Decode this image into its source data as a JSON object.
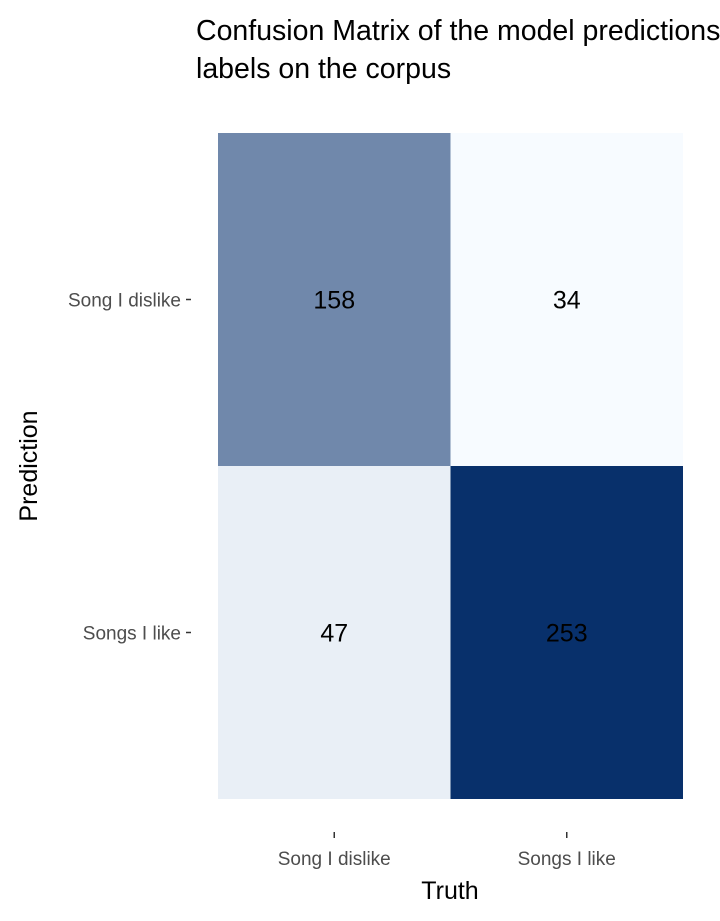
{
  "chart_data": {
    "type": "heatmap",
    "title_lines": [
      "Confusion Matrix of the model predictions and true",
      "labels on the corpus"
    ],
    "xlabel": "Truth",
    "ylabel": "Prediction",
    "x_categories": [
      "Song I dislike",
      "Songs I like"
    ],
    "y_categories": [
      "Song I dislike",
      "Songs I like"
    ],
    "values": [
      [
        158,
        34
      ],
      [
        47,
        253
      ]
    ],
    "color_scale": {
      "low": "#f7fbff",
      "high": "#08306b"
    },
    "legend": "none",
    "grid": false
  }
}
